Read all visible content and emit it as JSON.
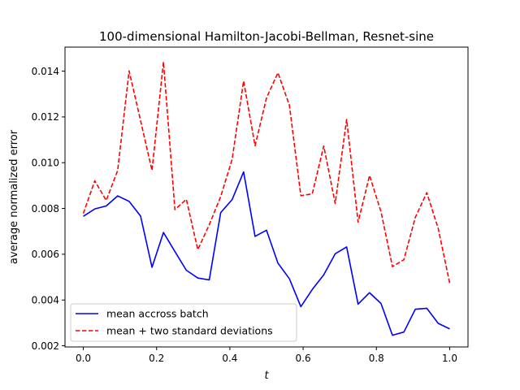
{
  "chart_data": {
    "type": "line",
    "title": "100-dimensional Hamilton-Jacobi-Bellman, Resnet-sine",
    "xlabel": "t",
    "ylabel": "average normalized error",
    "xlim": [
      -0.05,
      1.05
    ],
    "ylim": [
      0.00195,
      0.01505
    ],
    "xticks": [
      0.0,
      0.2,
      0.4,
      0.6,
      0.8,
      1.0
    ],
    "xtick_labels": [
      "0.0",
      "0.2",
      "0.4",
      "0.6",
      "0.8",
      "1.0"
    ],
    "yticks": [
      0.002,
      0.004,
      0.006,
      0.008,
      0.01,
      0.012,
      0.014
    ],
    "ytick_labels": [
      "0.002",
      "0.004",
      "0.006",
      "0.008",
      "0.010",
      "0.012",
      "0.014"
    ],
    "grid": false,
    "legend_position": "lower-left",
    "x": [
      0.0,
      0.03125,
      0.0625,
      0.09375,
      0.125,
      0.15625,
      0.1875,
      0.21875,
      0.25,
      0.28125,
      0.3125,
      0.34375,
      0.375,
      0.40625,
      0.4375,
      0.46875,
      0.5,
      0.53125,
      0.5625,
      0.59375,
      0.625,
      0.65625,
      0.6875,
      0.71875,
      0.75,
      0.78125,
      0.8125,
      0.84375,
      0.875,
      0.90625,
      0.9375,
      0.96875,
      1.0
    ],
    "series": [
      {
        "name": "mean accross batch",
        "color": "#0000ff",
        "style": "solid",
        "values": [
          0.00766,
          0.00798,
          0.00811,
          0.00855,
          0.00831,
          0.00767,
          0.00543,
          0.00695,
          0.00612,
          0.0053,
          0.00496,
          0.00488,
          0.00782,
          0.00839,
          0.0096,
          0.00678,
          0.00705,
          0.00561,
          0.00493,
          0.00371,
          0.00446,
          0.0051,
          0.00602,
          0.00632,
          0.00382,
          0.00432,
          0.00385,
          0.00246,
          0.0026,
          0.0036,
          0.00364,
          0.00298,
          0.00274
        ]
      },
      {
        "name": "mean + two standard deviations",
        "color": "#ff0000",
        "style": "dashed",
        "values": [
          0.00778,
          0.00921,
          0.00835,
          0.00966,
          0.01401,
          0.01184,
          0.00966,
          0.01441,
          0.00795,
          0.0084,
          0.0062,
          0.00729,
          0.00852,
          0.01015,
          0.01357,
          0.01074,
          0.01283,
          0.01393,
          0.01251,
          0.00856,
          0.00864,
          0.01073,
          0.00822,
          0.01189,
          0.0074,
          0.00944,
          0.00786,
          0.00546,
          0.00576,
          0.00761,
          0.00869,
          0.00713,
          0.00474
        ]
      }
    ]
  }
}
